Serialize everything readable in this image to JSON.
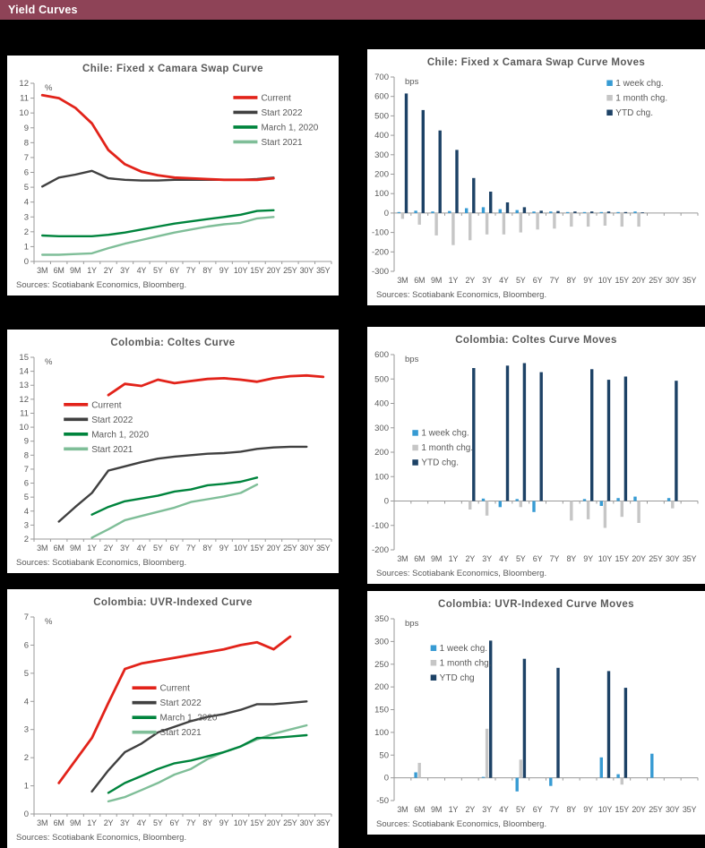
{
  "header": {
    "title": "Yield Curves",
    "bg_color": "#8e4357"
  },
  "colors": {
    "page_bg": "#000000",
    "panel_bg": "#ffffff",
    "header_bg": "#8e4357",
    "axis": "#9a9a9a",
    "text": "#595959",
    "red": "#e2231a",
    "dark_gray": "#404040",
    "green": "#00843d",
    "light_green": "#7fbe98",
    "light_blue": "#379bd3",
    "bar_gray": "#c6c6c6",
    "navy": "#1d4266"
  },
  "chart_data": [
    {
      "type": "line",
      "title": "Chile: Fixed x Camara Swap Curve",
      "unit_label": "%",
      "sources": "Sources: Scotiabank Economics, Bloomberg.",
      "categories": [
        "3M",
        "6M",
        "9M",
        "1Y",
        "2Y",
        "3Y",
        "4Y",
        "5Y",
        "6Y",
        "7Y",
        "8Y",
        "9Y",
        "10Y",
        "15Y",
        "20Y",
        "25Y",
        "30Y",
        "35Y"
      ],
      "ylim": [
        0,
        12
      ],
      "ytick_step": 1,
      "legend_pos": {
        "x": 0.67,
        "y": 0.08
      },
      "series": [
        {
          "name": "Current",
          "color": "#e2231a",
          "values": [
            11.2,
            11.0,
            10.35,
            9.3,
            7.5,
            6.55,
            6.05,
            5.8,
            5.65,
            5.6,
            5.55,
            5.5,
            5.5,
            5.5,
            5.6,
            null,
            null,
            null
          ]
        },
        {
          "name": "Start 2022",
          "color": "#404040",
          "values": [
            5.05,
            5.65,
            5.85,
            6.1,
            5.6,
            5.5,
            5.45,
            5.45,
            5.5,
            5.5,
            5.5,
            5.5,
            5.5,
            5.55,
            5.65,
            null,
            null,
            null
          ]
        },
        {
          "name": "March 1, 2020",
          "color": "#00843d",
          "values": [
            1.75,
            1.7,
            1.7,
            1.7,
            1.8,
            1.95,
            2.15,
            2.35,
            2.55,
            2.7,
            2.85,
            3.0,
            3.15,
            3.4,
            3.45,
            null,
            null,
            null
          ]
        },
        {
          "name": "Start 2021",
          "color": "#7fbe98",
          "values": [
            0.45,
            0.45,
            0.5,
            0.55,
            0.9,
            1.2,
            1.45,
            1.7,
            1.95,
            2.15,
            2.35,
            2.5,
            2.6,
            2.9,
            3.0,
            null,
            null,
            null
          ]
        }
      ]
    },
    {
      "type": "bar",
      "title": "Chile: Fixed x Camara Swap Curve Moves",
      "unit_label": "bps",
      "sources": "Sources: Scotiabank Economics, Bloomberg.",
      "categories": [
        "3M",
        "6M",
        "9M",
        "1Y",
        "2Y",
        "3Y",
        "4Y",
        "5Y",
        "6Y",
        "7Y",
        "8Y",
        "9Y",
        "10Y",
        "15Y",
        "20Y",
        "25Y",
        "30Y",
        "35Y"
      ],
      "ylim": [
        -300,
        700
      ],
      "ytick_step": 100,
      "legend_pos": {
        "x": 0.7,
        "y": 0.03
      },
      "series": [
        {
          "name": "1 week chg.",
          "color": "#379bd3",
          "values": [
            5,
            12,
            8,
            10,
            25,
            30,
            20,
            15,
            8,
            8,
            5,
            5,
            5,
            5,
            8,
            null,
            null,
            null
          ]
        },
        {
          "name": "1 month chg.",
          "color": "#c6c6c6",
          "values": [
            -30,
            -60,
            -115,
            -165,
            -140,
            -110,
            -110,
            -100,
            -85,
            -80,
            -70,
            -70,
            -65,
            -70,
            -70,
            null,
            null,
            null
          ]
        },
        {
          "name": "YTD chg.",
          "color": "#1d4266",
          "values": [
            615,
            530,
            425,
            325,
            180,
            110,
            55,
            30,
            12,
            10,
            8,
            8,
            8,
            5,
            3,
            null,
            null,
            null
          ]
        }
      ]
    },
    {
      "type": "line",
      "title": "Colombia: Coltes Curve",
      "unit_label": "%",
      "sources": "Sources: Scotiabank Economics, Bloomberg.",
      "categories": [
        "3M",
        "6M",
        "9M",
        "1Y",
        "2Y",
        "3Y",
        "4Y",
        "5Y",
        "6Y",
        "7Y",
        "8Y",
        "9Y",
        "10Y",
        "15Y",
        "20Y",
        "25Y",
        "30Y",
        "35Y"
      ],
      "ylim": [
        2,
        15
      ],
      "ytick_step": 1,
      "legend_pos": {
        "x": 0.1,
        "y": 0.26
      },
      "series": [
        {
          "name": "Current",
          "color": "#e2231a",
          "values": [
            null,
            null,
            null,
            null,
            12.3,
            13.1,
            12.95,
            13.4,
            13.15,
            13.3,
            13.45,
            13.5,
            13.4,
            13.25,
            13.5,
            13.65,
            13.7,
            13.6
          ]
        },
        {
          "name": "Start 2022",
          "color": "#404040",
          "values": [
            null,
            3.25,
            4.3,
            5.3,
            6.9,
            7.2,
            7.5,
            7.75,
            7.9,
            8.0,
            8.1,
            8.15,
            8.25,
            8.45,
            8.55,
            8.6,
            8.6,
            null
          ]
        },
        {
          "name": "March 1, 2020",
          "color": "#00843d",
          "values": [
            null,
            null,
            null,
            3.75,
            4.3,
            4.7,
            4.9,
            5.1,
            5.4,
            5.55,
            5.85,
            5.95,
            6.1,
            6.4,
            null,
            null,
            null,
            null
          ]
        },
        {
          "name": "Start 2021",
          "color": "#7fbe98",
          "values": [
            null,
            null,
            null,
            2.1,
            2.7,
            3.35,
            3.65,
            3.95,
            4.25,
            4.65,
            4.85,
            5.05,
            5.3,
            5.9,
            null,
            null,
            null,
            null
          ]
        }
      ]
    },
    {
      "type": "bar",
      "title": "Colombia: Coltes Curve Moves",
      "unit_label": "bps",
      "sources": "Sources: Scotiabank Economics, Bloomberg.",
      "categories": [
        "3M",
        "6M",
        "9M",
        "1Y",
        "2Y",
        "3Y",
        "4Y",
        "5Y",
        "6Y",
        "7Y",
        "8Y",
        "9Y",
        "10Y",
        "15Y",
        "20Y",
        "25Y",
        "30Y",
        "35Y"
      ],
      "ylim": [
        -200,
        600
      ],
      "ytick_step": 100,
      "legend_pos": {
        "x": 0.06,
        "y": 0.4
      },
      "series": [
        {
          "name": "1 week chg.",
          "color": "#379bd3",
          "values": [
            null,
            null,
            null,
            null,
            null,
            10,
            -25,
            8,
            -45,
            null,
            null,
            8,
            -20,
            12,
            18,
            null,
            12,
            null
          ]
        },
        {
          "name": "1 month chg.",
          "color": "#c6c6c6",
          "values": [
            null,
            null,
            null,
            null,
            -35,
            -60,
            null,
            -25,
            null,
            null,
            -80,
            -75,
            -110,
            -65,
            -90,
            null,
            -30,
            null
          ]
        },
        {
          "name": "YTD chg.",
          "color": "#1d4266",
          "values": [
            null,
            null,
            null,
            null,
            545,
            null,
            555,
            565,
            528,
            null,
            null,
            540,
            497,
            510,
            null,
            null,
            493,
            null
          ]
        }
      ]
    },
    {
      "type": "line",
      "title": "Colombia: UVR-Indexed Curve",
      "unit_label": "%",
      "sources": "Sources: Scotiabank Economics, Bloomberg.",
      "categories": [
        "3M",
        "6M",
        "9M",
        "1Y",
        "2Y",
        "3Y",
        "4Y",
        "5Y",
        "6Y",
        "7Y",
        "8Y",
        "9Y",
        "10Y",
        "15Y",
        "20Y",
        "25Y",
        "30Y",
        "35Y"
      ],
      "ylim": [
        0,
        7
      ],
      "ytick_step": 1,
      "legend_pos": {
        "x": 0.33,
        "y": 0.36
      },
      "series": [
        {
          "name": "Current",
          "color": "#e2231a",
          "values": [
            null,
            1.1,
            1.9,
            2.7,
            3.95,
            5.15,
            5.35,
            5.45,
            5.55,
            5.65,
            5.75,
            5.85,
            6.0,
            6.1,
            5.85,
            6.3,
            null,
            null
          ]
        },
        {
          "name": "Start 2022",
          "color": "#404040",
          "values": [
            null,
            null,
            null,
            0.8,
            1.55,
            2.2,
            2.5,
            2.9,
            3.1,
            3.3,
            3.45,
            3.55,
            3.7,
            3.9,
            3.9,
            3.95,
            4.0,
            null
          ]
        },
        {
          "name": "March 1, 2020",
          "color": "#00843d",
          "values": [
            null,
            null,
            null,
            null,
            0.75,
            1.1,
            1.35,
            1.6,
            1.8,
            1.9,
            2.05,
            2.2,
            2.4,
            2.7,
            2.7,
            2.75,
            2.8,
            null
          ]
        },
        {
          "name": "Start 2021",
          "color": "#7fbe98",
          "values": [
            null,
            null,
            null,
            null,
            0.45,
            0.6,
            0.85,
            1.1,
            1.4,
            1.6,
            1.95,
            2.2,
            2.4,
            2.65,
            2.85,
            3.0,
            3.15,
            null
          ]
        }
      ]
    },
    {
      "type": "bar",
      "title": "Colombia: UVR-Indexed Curve Moves",
      "unit_label": "bps",
      "sources": "Sources: Scotiabank Economics, Bloomberg.",
      "categories": [
        "3M",
        "6M",
        "9M",
        "1Y",
        "2Y",
        "3Y",
        "4Y",
        "5Y",
        "6Y",
        "7Y",
        "8Y",
        "9Y",
        "10Y",
        "15Y",
        "20Y",
        "25Y",
        "30Y",
        "35Y"
      ],
      "ylim": [
        -50,
        350
      ],
      "ytick_step": 50,
      "legend_pos": {
        "x": 0.12,
        "y": 0.16
      },
      "series": [
        {
          "name": "1 week chg.",
          "color": "#379bd3",
          "values": [
            null,
            12,
            null,
            null,
            null,
            2,
            null,
            -30,
            null,
            -18,
            null,
            null,
            45,
            8,
            null,
            53,
            null,
            null
          ]
        },
        {
          "name": "1 month chg.",
          "color": "#c6c6c6",
          "values": [
            null,
            33,
            null,
            null,
            null,
            108,
            null,
            40,
            null,
            null,
            null,
            null,
            null,
            -15,
            null,
            null,
            null,
            null
          ]
        },
        {
          "name": "YTD chg",
          "color": "#1d4266",
          "values": [
            null,
            null,
            null,
            null,
            null,
            302,
            null,
            262,
            null,
            242,
            null,
            null,
            235,
            198,
            null,
            null,
            null,
            null
          ]
        }
      ]
    }
  ]
}
